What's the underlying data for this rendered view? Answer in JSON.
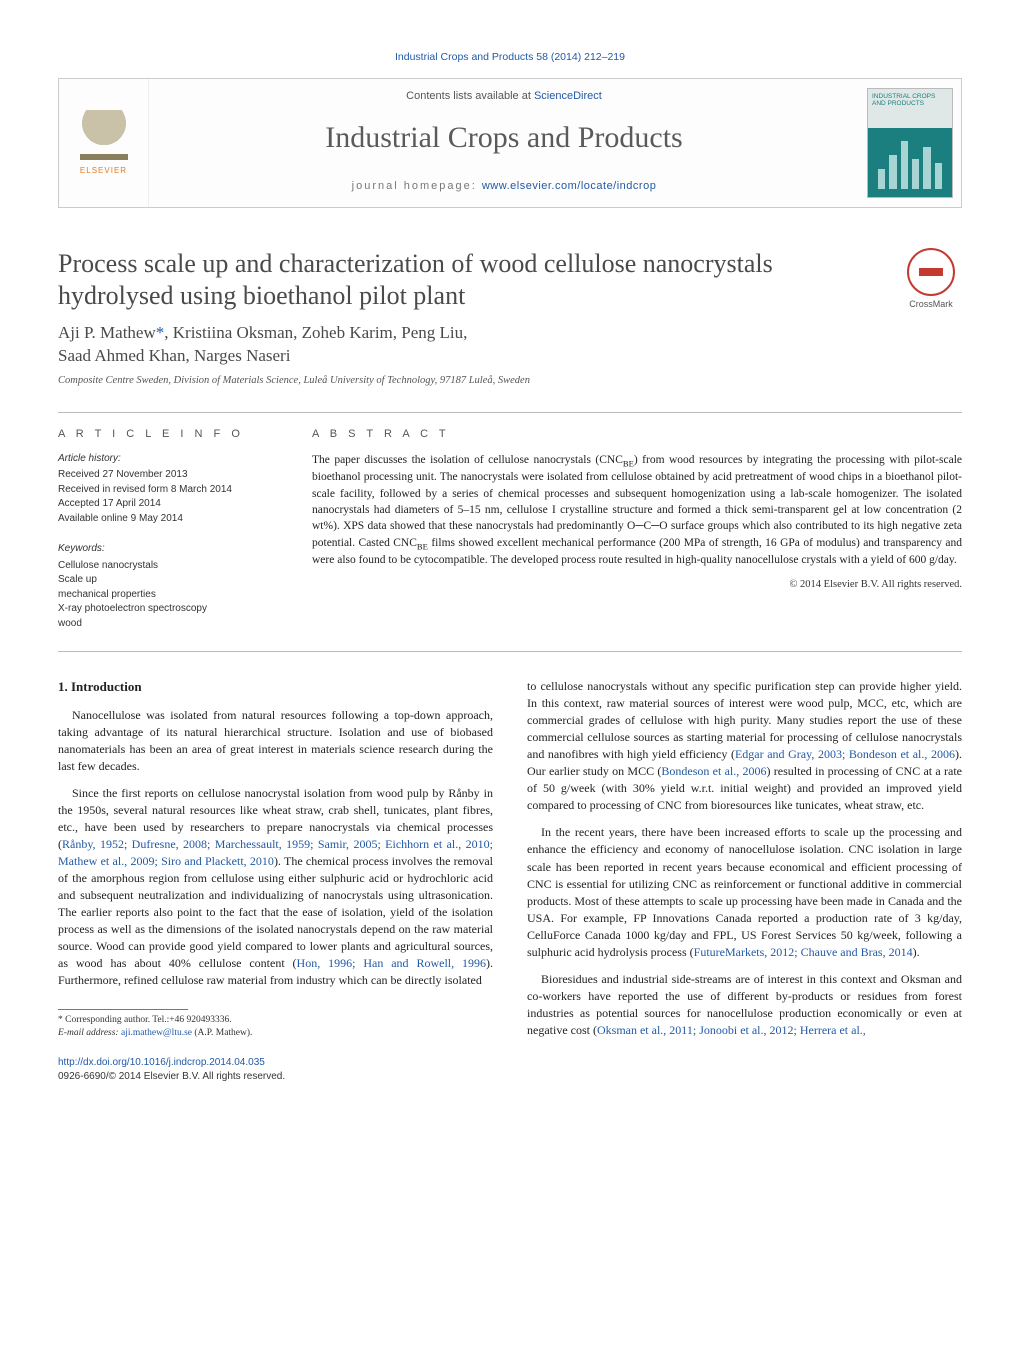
{
  "running_head": "Industrial Crops and Products 58 (2014) 212–219",
  "masthead": {
    "logo_word": "ELSEVIER",
    "contents_prefix": "Contents lists available at ",
    "contents_link": "ScienceDirect",
    "journal_title": "Industrial Crops and Products",
    "homepage_prefix": "journal homepage: ",
    "homepage_link": "www.elsevier.com/locate/indcrop",
    "cover_title": "INDUSTRIAL CROPS AND PRODUCTS",
    "cover_bar_heights": [
      20,
      34,
      48,
      30,
      42,
      26
    ]
  },
  "title": "Process scale up and characterization of wood cellulose nanocrystals hydrolysed using bioethanol pilot plant",
  "crossmark_label": "CrossMark",
  "authors_line1": "Aji P. Mathew",
  "authors_corr": "*",
  "authors_line1b": ", Kristiina Oksman, Zoheb Karim, Peng Liu,",
  "authors_line2": "Saad Ahmed Khan, Narges Naseri",
  "affiliation": "Composite Centre Sweden, Division of Materials Science, Luleå University of Technology, 97187 Luleå, Sweden",
  "info": {
    "section_head": "a r t i c l e   i n f o",
    "history_head": "Article history:",
    "history": [
      "Received 27 November 2013",
      "Received in revised form 8 March 2014",
      "Accepted 17 April 2014",
      "Available online 9 May 2014"
    ],
    "keywords_head": "Keywords:",
    "keywords": [
      "Cellulose nanocrystals",
      "Scale up",
      "mechanical properties",
      "X-ray photoelectron spectroscopy",
      "wood"
    ]
  },
  "abstract": {
    "section_head": "a b s t r a c t",
    "text": "The paper discusses the isolation of cellulose nanocrystals (CNC_BE) from wood resources by integrating the processing with pilot-scale bioethanol processing unit. The nanocrystals were isolated from cellulose obtained by acid pretreatment of wood chips in a bioethanol pilot-scale facility, followed by a series of chemical processes and subsequent homogenization using a lab-scale homogenizer. The isolated nanocrystals had diameters of 5–15 nm, cellulose I crystalline structure and formed a thick semi-transparent gel at low concentration (2 wt%). XPS data showed that these nanocrystals had predominantly O─C─O surface groups which also contributed to its high negative zeta potential. Casted CNC_BE films showed excellent mechanical performance (200 MPa of strength, 16 GPa of modulus) and transparency and were also found to be cytocompatible. The developed process route resulted in high-quality nanocellulose crystals with a yield of 600 g/day.",
    "copyright": "© 2014 Elsevier B.V. All rights reserved."
  },
  "body": {
    "h_intro": "1.  Introduction",
    "p1": "Nanocellulose was isolated from natural resources following a top-down approach, taking advantage of its natural hierarchical structure. Isolation and use of biobased nanomaterials has been an area of great interest in materials science research during the last few decades.",
    "p2a": "Since the first reports on cellulose nanocrystal isolation from wood pulp by Rånby in the 1950s, several natural resources like wheat straw, crab shell, tunicates, plant fibres, etc., have been used by researchers to prepare nanocrystals via chemical processes (",
    "p2cite": "Rånby, 1952; Dufresne, 2008; Marchessault, 1959; Samir, 2005; Eichhorn et al., 2010; Mathew et al., 2009; Siro and Plackett, 2010",
    "p2b": "). The chemical process involves the removal of the amorphous region from cellulose using either sulphuric acid or hydrochloric acid and subsequent neutralization and individualizing of nanocrystals using ultrasonication. The earlier reports also point to the fact that the ease of isolation, yield of the isolation process as well as the dimensions of the isolated nanocrystals depend on the raw material source. Wood can provide good yield compared to lower plants and agricultural sources, as wood has about 40% cellulose content (",
    "p2cite2": "Hon, 1996; Han and Rowell, 1996",
    "p2c": "). Furthermore, refined cellulose raw material from industry which can be directly isolated",
    "p3a": "to cellulose nanocrystals without any specific purification step can provide higher yield. In this context, raw material sources of interest were wood pulp, MCC, etc, which are commercial grades of cellulose with high purity. Many studies report the use of these commercial cellulose sources as starting material for processing of cellulose nanocrystals and nanofibres with high yield efficiency (",
    "p3cite": "Edgar and Gray, 2003; Bondeson et al., 2006",
    "p3b": "). Our earlier study on MCC (",
    "p3cite2": "Bondeson et al., 2006",
    "p3c": ") resulted in processing of CNC at a rate of 50 g/week (with 30% yield w.r.t. initial weight) and provided an improved yield compared to processing of CNC from bioresources like tunicates, wheat straw, etc.",
    "p4a": "In the recent years, there have been increased efforts to scale up the processing and enhance the efficiency and economy of nanocellulose isolation. CNC isolation in large scale has been reported in recent years because economical and efficient processing of CNC is essential for utilizing CNC as reinforcement or functional additive in commercial products. Most of these attempts to scale up processing have been made in Canada and the USA. For example, FP Innovations Canada reported a production rate of 3 kg/day, CelluForce Canada 1000 kg/day and FPL, US Forest Services 50 kg/week, following a sulphuric acid hydrolysis process (",
    "p4cite": "FutureMarkets, 2012; Chauve and Bras, 2014",
    "p4b": ").",
    "p5a": "Bioresidues and industrial side-streams are of interest in this context and Oksman and co-workers have reported the use of different by-products or residues from forest industries as potential sources for nanocellulose production economically or even at negative cost (",
    "p5cite": "Oksman et al., 2011; Jonoobi et al., 2012; Herrera et al.,",
    "foot_corr": "* Corresponding author. Tel.:+46 920493336.",
    "foot_email_label": "E-mail address: ",
    "foot_email": "aji.mathew@ltu.se",
    "foot_email_tail": " (A.P. Mathew)."
  },
  "doi": {
    "url": "http://dx.doi.org/10.1016/j.indcrop.2014.04.035",
    "issn_line": "0926-6690/© 2014 Elsevier B.V. All rights reserved."
  },
  "colors": {
    "link": "#2259a6",
    "cover_teal": "#1b7f80",
    "crossmark_red": "#c33a32",
    "elsevier_orange": "#e37b1e"
  }
}
